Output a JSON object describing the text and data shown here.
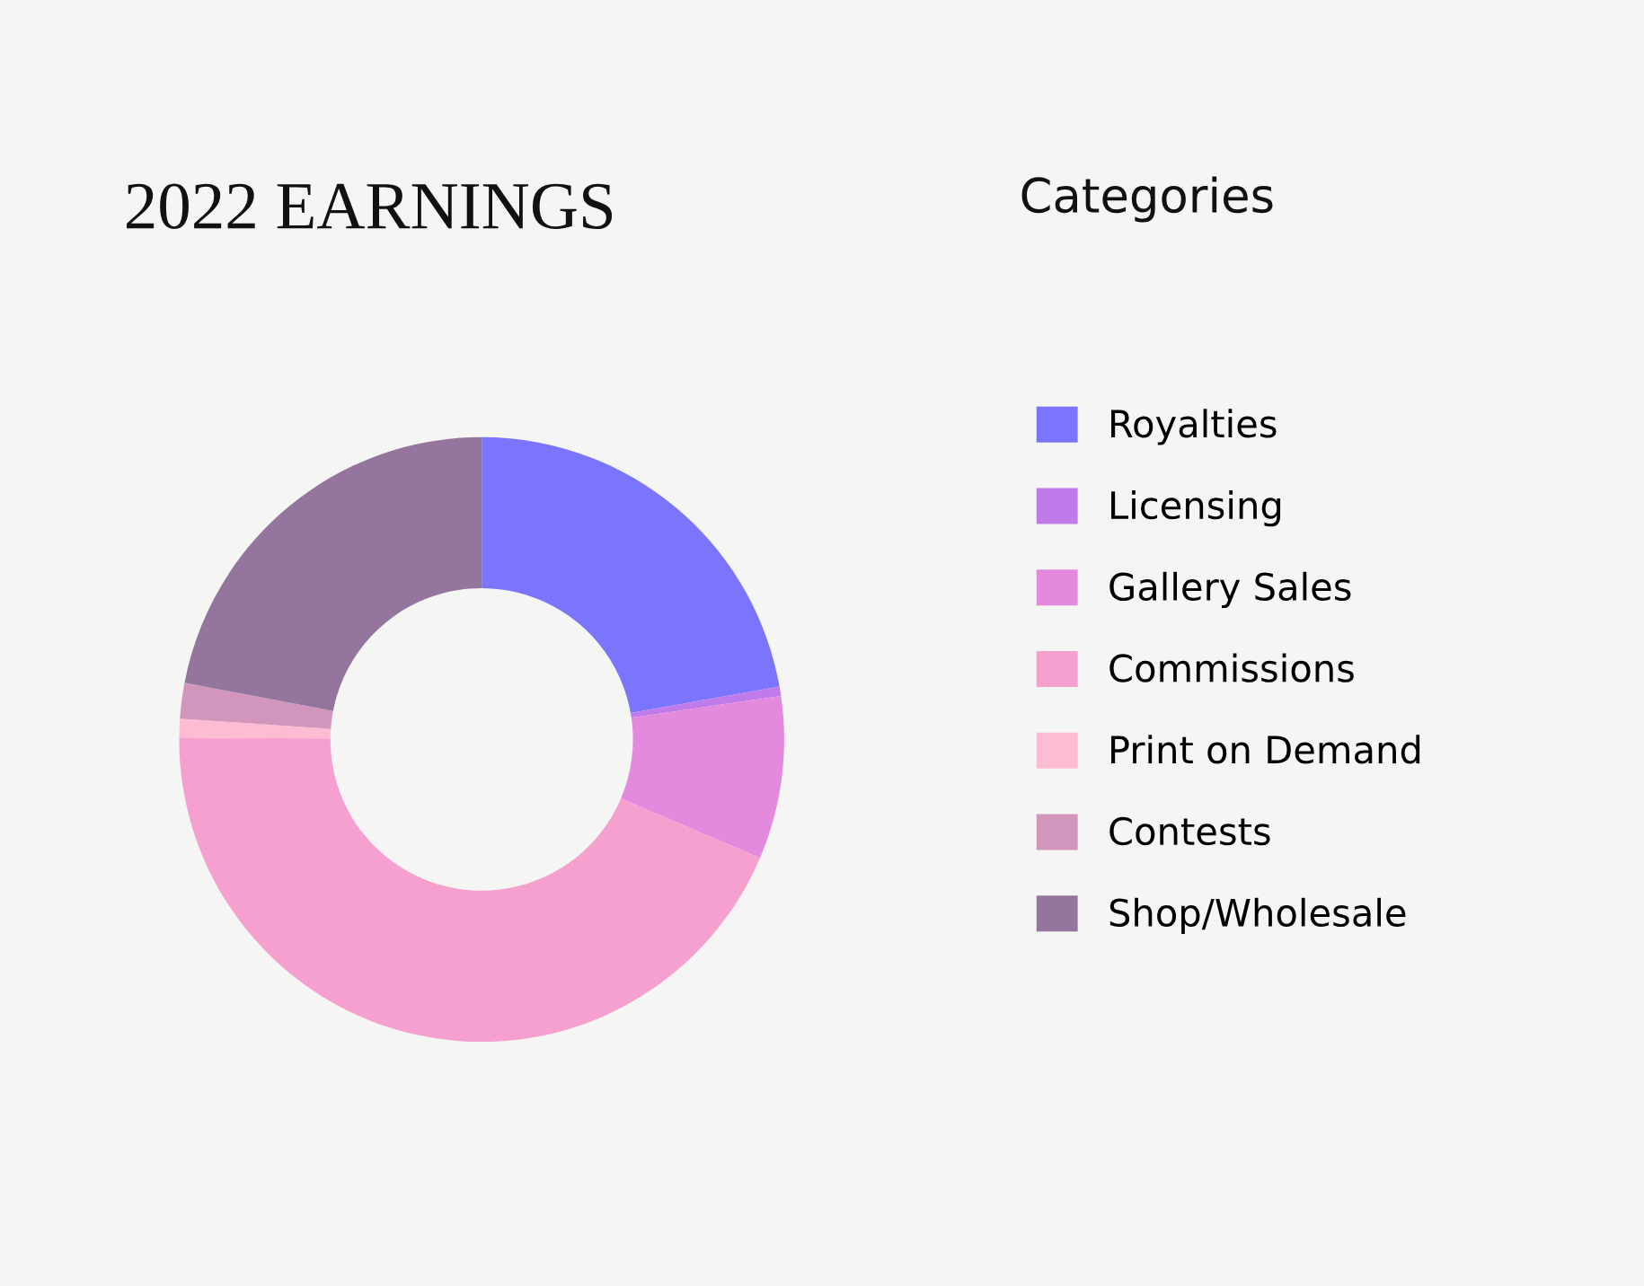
{
  "chart_data": {
    "type": "donut",
    "title": "2022 EARNINGS",
    "legend_title": "Categories",
    "legend": "right",
    "categories": [
      "Royalties",
      "Licensing",
      "Gallery Sales",
      "Commissions",
      "Print on Demand",
      "Contests",
      "Shop/Wholesale"
    ],
    "values": [
      22.2,
      0.5,
      8.7,
      43.7,
      1,
      1.9,
      22
    ],
    "colors": [
      "#7b74fc",
      "#c07bea",
      "#e48ade",
      "#f6a0d0",
      "#fdbcd4",
      "#d296bd",
      "#94759d"
    ]
  }
}
